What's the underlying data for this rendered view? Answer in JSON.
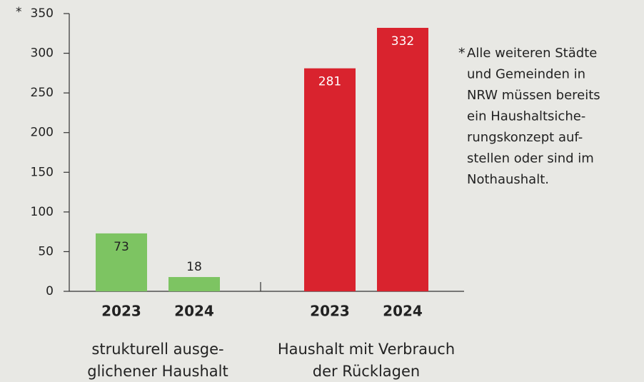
{
  "chart_data": {
    "type": "grouped-bar",
    "groups": [
      {
        "name": [
          "strukturell ausge-",
          "glichener Haushalt"
        ],
        "categories": [
          "2023",
          "2024"
        ],
        "values": [
          73,
          18
        ],
        "color": "#7dc462"
      },
      {
        "name": [
          "Haushalt mit Verbrauch",
          "der Rücklagen"
        ],
        "categories": [
          "2023",
          "2024"
        ],
        "values": [
          281,
          332
        ],
        "color": "#d9232e"
      }
    ],
    "ylim": [
      0,
      350
    ],
    "yticks": [
      0,
      50,
      100,
      150,
      200,
      250,
      300,
      350
    ],
    "annotation": {
      "marker": "*",
      "lines": [
        "Alle weiteren Städte",
        "und Gemeinden in",
        "NRW müssen bereits",
        "ein Haushaltsiche-",
        "rungskonzept auf-",
        "stellen oder sind im",
        "Nothaushalt."
      ]
    }
  }
}
